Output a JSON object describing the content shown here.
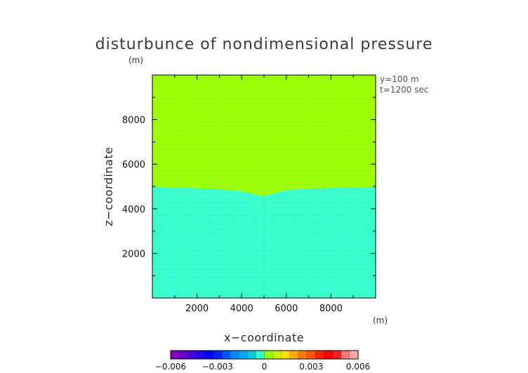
{
  "chart_data": {
    "type": "heatmap",
    "title": "disturbunce of nondimensional pressure",
    "z_unit": "(m)",
    "x_unit": "(m)",
    "xlabel": "x−coordinate",
    "ylabel": "z−coordinate",
    "xlim": [
      0,
      10000
    ],
    "ylim": [
      0,
      10000
    ],
    "x_ticks": [
      2000,
      4000,
      6000,
      8000
    ],
    "y_ticks": [
      2000,
      4000,
      6000,
      8000
    ],
    "annotations": [
      "y=100 m",
      "t=1200 sec"
    ],
    "regions": [
      {
        "range": [
          0,
          0.0005
        ],
        "color": "#33ffcc",
        "where": "lower"
      },
      {
        "range": [
          0.0005,
          0.001
        ],
        "color": "#99ff00",
        "where": "upper"
      }
    ],
    "boundary": {
      "x": [
        0,
        1000,
        2000,
        3000,
        3800,
        4300,
        4700,
        5000,
        5300,
        5700,
        6200,
        7000,
        8000,
        9000,
        10000
      ],
      "z": [
        4980,
        4960,
        4920,
        4870,
        4820,
        4720,
        4620,
        4580,
        4640,
        4760,
        4860,
        4900,
        4930,
        4960,
        4980
      ]
    },
    "colorbar": {
      "ticks": [
        "−0.006",
        "−0.003",
        "0",
        "0.003",
        "0.006"
      ],
      "tick_values": [
        -0.006,
        -0.003,
        0,
        0.003,
        0.006
      ],
      "range": [
        -0.006,
        0.006
      ],
      "colors": [
        "#8800bb",
        "#6a00cc",
        "#4400dd",
        "#2200ee",
        "#0000ff",
        "#0022ff",
        "#0055ff",
        "#0088ff",
        "#00aaee",
        "#00ccdd",
        "#33ffcc",
        "#99ff00",
        "#ccee00",
        "#ffdd00",
        "#ffaa00",
        "#ff7700",
        "#ff5500",
        "#ff2200",
        "#ff0000",
        "#ee2222",
        "#ff7777",
        "#ffaaaa"
      ]
    }
  }
}
